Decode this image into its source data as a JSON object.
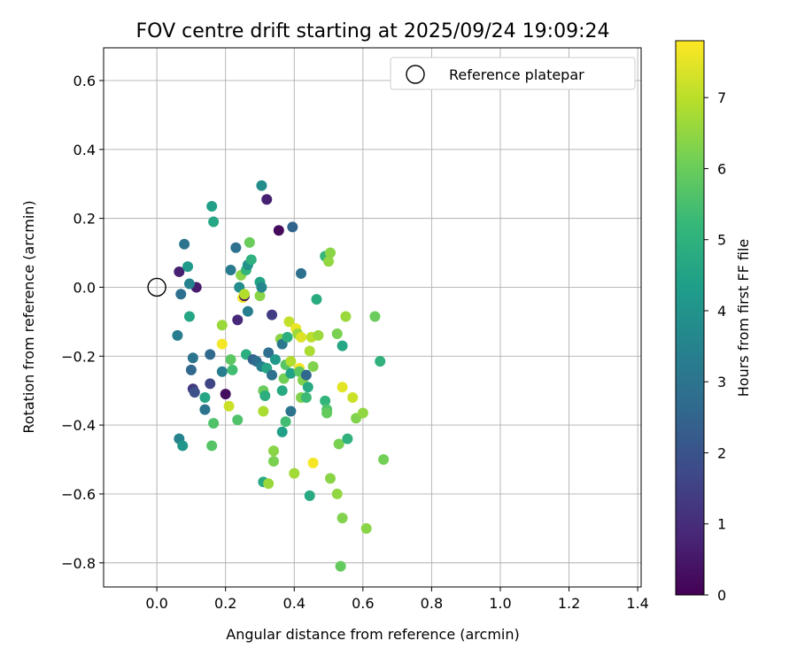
{
  "chart_data": {
    "type": "scatter",
    "title": "FOV centre drift starting at 2025/09/24 19:09:24",
    "xlabel": "Angular distance from reference (arcmin)",
    "ylabel": "Rotation from reference (arcmin)",
    "xlim": [
      -0.155,
      1.41
    ],
    "ylim": [
      -0.87,
      0.695
    ],
    "xticks": [
      0.0,
      0.2,
      0.4,
      0.6,
      0.8,
      1.0,
      1.2,
      1.4
    ],
    "xtick_labels": [
      "0.0",
      "0.2",
      "0.4",
      "0.6",
      "0.8",
      "1.0",
      "1.2",
      "1.4"
    ],
    "yticks": [
      0.6,
      0.4,
      0.2,
      0.0,
      -0.2,
      -0.4,
      -0.6,
      -0.8
    ],
    "ytick_labels": [
      "0.6",
      "0.4",
      "0.2",
      "0.0",
      "−0.2",
      "−0.4",
      "−0.6",
      "−0.8"
    ],
    "grid": true,
    "legend": {
      "position": "top-right",
      "label": "Reference platepar"
    },
    "reference_point": {
      "x": 0.0,
      "y": 0.0
    },
    "colorbar": {
      "label": "Hours from first FF file",
      "range": [
        0,
        7.8
      ],
      "ticks": [
        0,
        1,
        2,
        3,
        4,
        5,
        6,
        7
      ],
      "tick_labels": [
        "0",
        "1",
        "2",
        "3",
        "4",
        "5",
        "6",
        "7"
      ],
      "colormap": "viridis"
    },
    "points": [
      {
        "x": 0.065,
        "y": 0.045,
        "c": 0.7
      },
      {
        "x": 0.115,
        "y": 0.0,
        "c": 0.6
      },
      {
        "x": 0.07,
        "y": -0.02,
        "c": 2.8
      },
      {
        "x": 0.08,
        "y": 0.125,
        "c": 3.0
      },
      {
        "x": 0.09,
        "y": 0.06,
        "c": 4.2
      },
      {
        "x": 0.095,
        "y": 0.01,
        "c": 3.5
      },
      {
        "x": 0.095,
        "y": -0.085,
        "c": 4.6
      },
      {
        "x": 0.06,
        "y": -0.14,
        "c": 3.3
      },
      {
        "x": 0.105,
        "y": -0.205,
        "c": 3.0
      },
      {
        "x": 0.1,
        "y": -0.24,
        "c": 2.6
      },
      {
        "x": 0.105,
        "y": -0.295,
        "c": 1.3
      },
      {
        "x": 0.11,
        "y": -0.305,
        "c": 1.9
      },
      {
        "x": 0.065,
        "y": -0.44,
        "c": 3.5
      },
      {
        "x": 0.075,
        "y": -0.46,
        "c": 4.1
      },
      {
        "x": 0.14,
        "y": -0.32,
        "c": 4.6
      },
      {
        "x": 0.14,
        "y": -0.355,
        "c": 3.0
      },
      {
        "x": 0.155,
        "y": -0.28,
        "c": 1.6
      },
      {
        "x": 0.155,
        "y": -0.195,
        "c": 2.7
      },
      {
        "x": 0.16,
        "y": 0.235,
        "c": 4.4
      },
      {
        "x": 0.165,
        "y": 0.19,
        "c": 4.6
      },
      {
        "x": 0.165,
        "y": -0.395,
        "c": 5.6
      },
      {
        "x": 0.16,
        "y": -0.46,
        "c": 5.7
      },
      {
        "x": 0.19,
        "y": -0.245,
        "c": 3.3
      },
      {
        "x": 0.19,
        "y": -0.11,
        "c": 6.6
      },
      {
        "x": 0.19,
        "y": -0.165,
        "c": 7.7
      },
      {
        "x": 0.2,
        "y": -0.31,
        "c": 0.3
      },
      {
        "x": 0.21,
        "y": -0.345,
        "c": 7.2
      },
      {
        "x": 0.215,
        "y": 0.05,
        "c": 3.2
      },
      {
        "x": 0.215,
        "y": -0.21,
        "c": 5.8
      },
      {
        "x": 0.22,
        "y": -0.24,
        "c": 5.4
      },
      {
        "x": 0.23,
        "y": 0.115,
        "c": 2.9
      },
      {
        "x": 0.235,
        "y": -0.095,
        "c": 0.9
      },
      {
        "x": 0.235,
        "y": -0.385,
        "c": 5.6
      },
      {
        "x": 0.24,
        "y": 0.0,
        "c": 3.8
      },
      {
        "x": 0.245,
        "y": 0.035,
        "c": 6.4
      },
      {
        "x": 0.25,
        "y": -0.03,
        "c": 7.6
      },
      {
        "x": 0.255,
        "y": -0.025,
        "c": 0.2
      },
      {
        "x": 0.255,
        "y": -0.02,
        "c": 6.9
      },
      {
        "x": 0.26,
        "y": 0.05,
        "c": 5.1
      },
      {
        "x": 0.26,
        "y": -0.195,
        "c": 4.9
      },
      {
        "x": 0.265,
        "y": 0.065,
        "c": 4.0
      },
      {
        "x": 0.265,
        "y": -0.07,
        "c": 3.3
      },
      {
        "x": 0.27,
        "y": 0.13,
        "c": 6.0
      },
      {
        "x": 0.275,
        "y": 0.08,
        "c": 5.0
      },
      {
        "x": 0.28,
        "y": -0.21,
        "c": 2.4
      },
      {
        "x": 0.29,
        "y": -0.215,
        "c": 2.8
      },
      {
        "x": 0.3,
        "y": 0.015,
        "c": 4.5
      },
      {
        "x": 0.3,
        "y": -0.025,
        "c": 6.4
      },
      {
        "x": 0.305,
        "y": 0.0,
        "c": 3.6
      },
      {
        "x": 0.305,
        "y": -0.23,
        "c": 3.4
      },
      {
        "x": 0.305,
        "y": 0.295,
        "c": 3.8
      },
      {
        "x": 0.31,
        "y": -0.3,
        "c": 6.0
      },
      {
        "x": 0.31,
        "y": -0.36,
        "c": 6.8
      },
      {
        "x": 0.31,
        "y": -0.565,
        "c": 4.7
      },
      {
        "x": 0.315,
        "y": -0.315,
        "c": 4.9
      },
      {
        "x": 0.32,
        "y": 0.255,
        "c": 0.7
      },
      {
        "x": 0.32,
        "y": -0.235,
        "c": 4.6
      },
      {
        "x": 0.325,
        "y": -0.19,
        "c": 2.8
      },
      {
        "x": 0.325,
        "y": -0.57,
        "c": 6.6
      },
      {
        "x": 0.335,
        "y": -0.255,
        "c": 2.9
      },
      {
        "x": 0.335,
        "y": -0.08,
        "c": 1.4
      },
      {
        "x": 0.34,
        "y": -0.475,
        "c": 6.4
      },
      {
        "x": 0.34,
        "y": -0.505,
        "c": 6.2
      },
      {
        "x": 0.345,
        "y": -0.21,
        "c": 4.2
      },
      {
        "x": 0.355,
        "y": 0.165,
        "c": 0.2
      },
      {
        "x": 0.36,
        "y": -0.15,
        "c": 6.4
      },
      {
        "x": 0.365,
        "y": -0.165,
        "c": 3.1
      },
      {
        "x": 0.365,
        "y": -0.3,
        "c": 4.7
      },
      {
        "x": 0.365,
        "y": -0.42,
        "c": 4.4
      },
      {
        "x": 0.37,
        "y": -0.265,
        "c": 6.1
      },
      {
        "x": 0.375,
        "y": -0.225,
        "c": 5.7
      },
      {
        "x": 0.375,
        "y": -0.39,
        "c": 5.4
      },
      {
        "x": 0.38,
        "y": -0.145,
        "c": 4.9
      },
      {
        "x": 0.385,
        "y": -0.1,
        "c": 7.1
      },
      {
        "x": 0.39,
        "y": -0.215,
        "c": 6.9
      },
      {
        "x": 0.39,
        "y": -0.25,
        "c": 4.5
      },
      {
        "x": 0.39,
        "y": -0.36,
        "c": 3.0
      },
      {
        "x": 0.395,
        "y": 0.175,
        "c": 2.5
      },
      {
        "x": 0.4,
        "y": -0.54,
        "c": 6.7
      },
      {
        "x": 0.405,
        "y": -0.12,
        "c": 7.6
      },
      {
        "x": 0.41,
        "y": -0.135,
        "c": 6.6
      },
      {
        "x": 0.415,
        "y": -0.235,
        "c": 7.7
      },
      {
        "x": 0.415,
        "y": -0.245,
        "c": 5.8
      },
      {
        "x": 0.42,
        "y": 0.04,
        "c": 2.9
      },
      {
        "x": 0.42,
        "y": -0.145,
        "c": 7.4
      },
      {
        "x": 0.42,
        "y": -0.32,
        "c": 6.3
      },
      {
        "x": 0.425,
        "y": -0.27,
        "c": 6.3
      },
      {
        "x": 0.435,
        "y": -0.255,
        "c": 2.6
      },
      {
        "x": 0.435,
        "y": -0.32,
        "c": 5.3
      },
      {
        "x": 0.44,
        "y": -0.29,
        "c": 4.7
      },
      {
        "x": 0.445,
        "y": -0.185,
        "c": 6.8
      },
      {
        "x": 0.445,
        "y": -0.605,
        "c": 4.7
      },
      {
        "x": 0.45,
        "y": -0.145,
        "c": 7.0
      },
      {
        "x": 0.455,
        "y": -0.51,
        "c": 7.7
      },
      {
        "x": 0.455,
        "y": -0.23,
        "c": 6.3
      },
      {
        "x": 0.465,
        "y": -0.035,
        "c": 4.8
      },
      {
        "x": 0.47,
        "y": -0.14,
        "c": 6.6
      },
      {
        "x": 0.49,
        "y": 0.09,
        "c": 5.2
      },
      {
        "x": 0.49,
        "y": -0.33,
        "c": 5.1
      },
      {
        "x": 0.495,
        "y": -0.355,
        "c": 5.6
      },
      {
        "x": 0.495,
        "y": -0.365,
        "c": 5.9
      },
      {
        "x": 0.5,
        "y": 0.075,
        "c": 6.5
      },
      {
        "x": 0.505,
        "y": 0.1,
        "c": 6.4
      },
      {
        "x": 0.505,
        "y": -0.555,
        "c": 6.4
      },
      {
        "x": 0.525,
        "y": -0.135,
        "c": 6.2
      },
      {
        "x": 0.525,
        "y": -0.6,
        "c": 6.5
      },
      {
        "x": 0.53,
        "y": -0.455,
        "c": 6.2
      },
      {
        "x": 0.535,
        "y": -0.81,
        "c": 5.9
      },
      {
        "x": 0.54,
        "y": -0.17,
        "c": 4.6
      },
      {
        "x": 0.54,
        "y": -0.29,
        "c": 7.5
      },
      {
        "x": 0.54,
        "y": -0.67,
        "c": 6.3
      },
      {
        "x": 0.55,
        "y": -0.085,
        "c": 6.6
      },
      {
        "x": 0.555,
        "y": -0.44,
        "c": 5.0
      },
      {
        "x": 0.57,
        "y": -0.32,
        "c": 7.2
      },
      {
        "x": 0.58,
        "y": -0.38,
        "c": 6.3
      },
      {
        "x": 0.6,
        "y": -0.365,
        "c": 6.5
      },
      {
        "x": 0.61,
        "y": -0.7,
        "c": 6.4
      },
      {
        "x": 0.635,
        "y": -0.085,
        "c": 6.0
      },
      {
        "x": 0.65,
        "y": -0.215,
        "c": 5.0
      },
      {
        "x": 0.66,
        "y": -0.5,
        "c": 6.1
      }
    ]
  }
}
